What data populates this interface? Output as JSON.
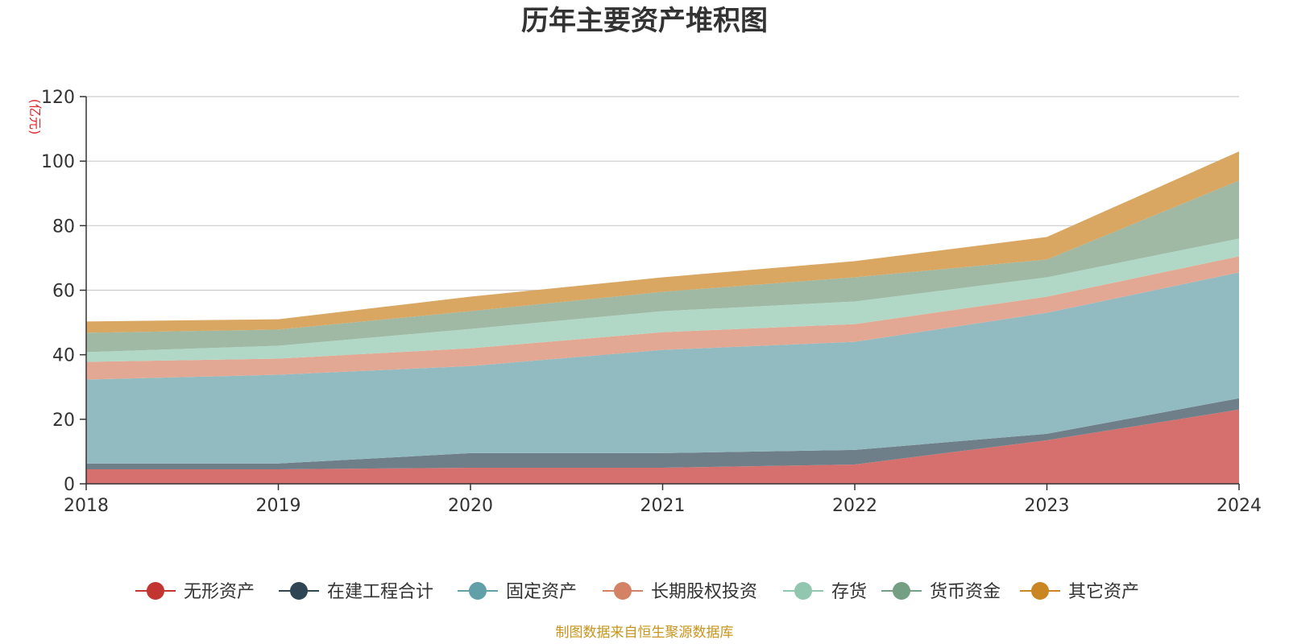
{
  "chart_data": {
    "type": "area",
    "stacked": true,
    "title": "历年主要资产堆积图",
    "unit_label": "(亿元)",
    "source_note": "制图数据来自恒生聚源数据库",
    "x": [
      "2018",
      "2019",
      "2020",
      "2021",
      "2022",
      "2023",
      "2024"
    ],
    "ylim": [
      0,
      120
    ],
    "yticks": [
      0,
      20,
      40,
      60,
      80,
      100,
      120
    ],
    "grid": true,
    "legend_position": "bottom",
    "series": [
      {
        "name": "无形资产",
        "color": "#c23531",
        "fill": "#d5706e",
        "values": [
          4.5,
          4.5,
          5.0,
          5.0,
          6.0,
          13.5,
          23.0
        ]
      },
      {
        "name": "在建工程合计",
        "color": "#2f4554",
        "fill": "#6e7f8a",
        "values": [
          1.8,
          1.8,
          4.5,
          4.5,
          4.5,
          2.0,
          3.5
        ]
      },
      {
        "name": "固定资产",
        "color": "#61a0a8",
        "fill": "#92bbc1",
        "values": [
          26.0,
          27.5,
          27.0,
          32.0,
          33.5,
          37.5,
          39.0
        ]
      },
      {
        "name": "长期股权投资",
        "color": "#d48265",
        "fill": "#e2a894",
        "values": [
          5.5,
          5.0,
          5.5,
          5.5,
          5.5,
          5.0,
          5.0
        ]
      },
      {
        "name": "存货",
        "color": "#91c7ae",
        "fill": "#b1d8c6",
        "values": [
          3.0,
          4.0,
          6.0,
          6.5,
          7.0,
          6.0,
          5.5
        ]
      },
      {
        "name": "货币资金",
        "color": "#749f83",
        "fill": "#9fb9a4",
        "values": [
          6.0,
          5.0,
          5.5,
          6.0,
          7.5,
          5.5,
          18.0
        ]
      },
      {
        "name": "其它资产",
        "color": "#ca8622",
        "fill": "#d9a762",
        "values": [
          3.5,
          3.2,
          4.5,
          4.5,
          5.0,
          7.0,
          9.0
        ]
      }
    ]
  }
}
